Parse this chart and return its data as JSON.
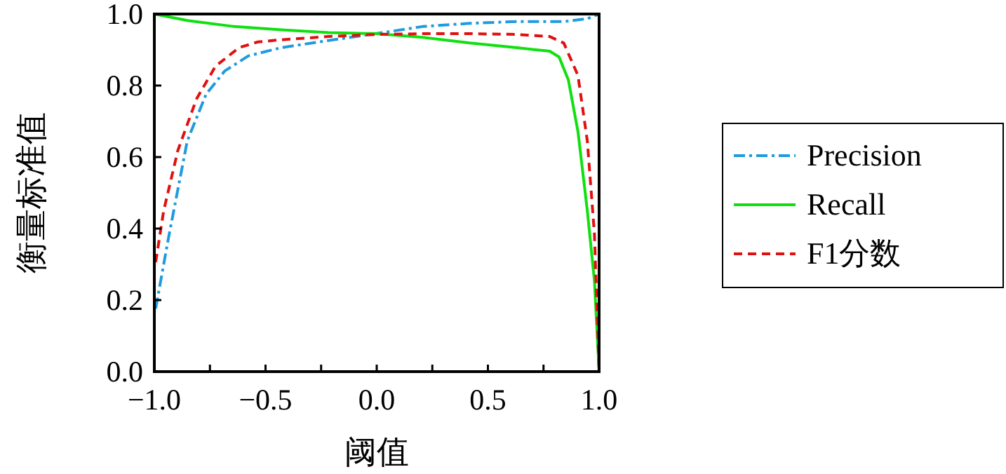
{
  "chart_data": {
    "type": "line",
    "xlabel": "阈值",
    "ylabel": "衡量标准值",
    "xlim": [
      -1,
      1
    ],
    "ylim": [
      0,
      1
    ],
    "xticks": [
      {
        "value": -1,
        "label": "−1.0"
      },
      {
        "value": -0.75,
        "label": null
      },
      {
        "value": -0.5,
        "label": "−0.5"
      },
      {
        "value": -0.25,
        "label": null
      },
      {
        "value": 0,
        "label": "0.0"
      },
      {
        "value": 0.25,
        "label": null
      },
      {
        "value": 0.5,
        "label": "0.5"
      },
      {
        "value": 0.75,
        "label": null
      },
      {
        "value": 1,
        "label": "1.0"
      }
    ],
    "yticks": [
      {
        "value": 0,
        "label": "0.0"
      },
      {
        "value": 0.2,
        "label": "0.2"
      },
      {
        "value": 0.4,
        "label": "0.4"
      },
      {
        "value": 0.6,
        "label": "0.6"
      },
      {
        "value": 0.8,
        "label": "0.8"
      },
      {
        "value": 1,
        "label": "1.0"
      }
    ],
    "grid": false,
    "legend": "right",
    "marker": "none",
    "series": [
      {
        "name": "Precision",
        "color": "#1f9bde",
        "line_style": "dashdot",
        "x": [
          -0.994,
          -0.937,
          -0.852,
          -0.767,
          -0.683,
          -0.577,
          -0.429,
          -0.217,
          -0.005,
          0.206,
          0.418,
          0.63,
          0.841,
          0.947,
          1.0
        ],
        "values": [
          0.176,
          0.372,
          0.645,
          0.776,
          0.841,
          0.883,
          0.906,
          0.926,
          0.945,
          0.965,
          0.974,
          0.979,
          0.979,
          0.987,
          1.0
        ]
      },
      {
        "name": "Recall",
        "color": "#10e010",
        "line_style": "solid",
        "x": [
          -1,
          -0.852,
          -0.64,
          -0.429,
          -0.217,
          0,
          0.206,
          0.418,
          0.63,
          0.778,
          0.82,
          0.862,
          0.905,
          0.947,
          0.979,
          1.0
        ],
        "values": [
          1.0,
          0.982,
          0.965,
          0.956,
          0.948,
          0.945,
          0.935,
          0.919,
          0.906,
          0.896,
          0.88,
          0.815,
          0.671,
          0.45,
          0.254,
          0
        ]
      },
      {
        "name": "F1分数",
        "color": "#e01010",
        "line_style": "dashed",
        "x": [
          -0.994,
          -0.958,
          -0.894,
          -0.81,
          -0.725,
          -0.619,
          -0.534,
          -0.429,
          -0.217,
          0,
          0.206,
          0.418,
          0.63,
          0.778,
          0.841,
          0.905,
          0.947,
          0.979,
          1.0
        ],
        "values": [
          0.306,
          0.45,
          0.619,
          0.763,
          0.854,
          0.906,
          0.922,
          0.928,
          0.937,
          0.943,
          0.945,
          0.945,
          0.943,
          0.937,
          0.919,
          0.828,
          0.645,
          0.385,
          0
        ]
      }
    ]
  }
}
